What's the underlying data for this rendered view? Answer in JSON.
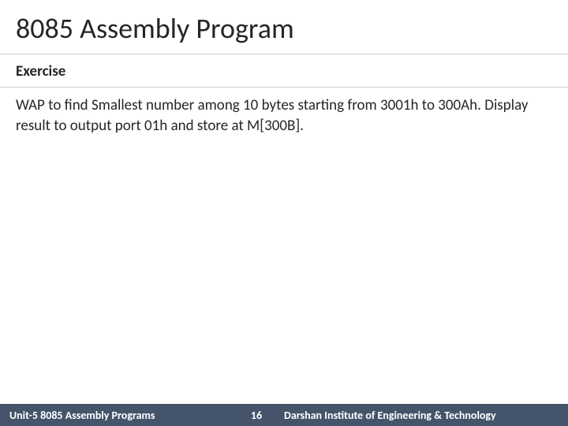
{
  "title": "8085 Assembly Program",
  "section_header": "Exercise",
  "body_text": "WAP to find Smallest number among 10 bytes starting from 3001h to 300Ah. Display result to output port 01h and store at M[300B].",
  "footer": {
    "left": "Unit-5 8085 Assembly Programs",
    "page_number": "16",
    "right": "Darshan Institute of Engineering & Technology"
  },
  "colors": {
    "title_text": "#262626",
    "body_text": "#262626",
    "footer_bg": "#44546a",
    "footer_text": "#ffffff",
    "divider": "#cccccc",
    "background": "#ffffff"
  },
  "typography": {
    "title_fontsize": 36,
    "section_header_fontsize": 19,
    "body_fontsize": 19,
    "footer_fontsize": 14
  }
}
